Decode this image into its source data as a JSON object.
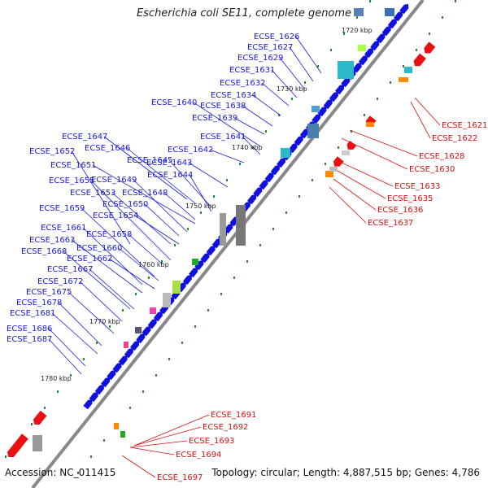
{
  "title": "Escherichia coli SE11, complete genome",
  "footer": {
    "accession": "Accession: NC_011415",
    "summary": "Topology: circular; Length: 4,887,515 bp; Genes: 4,786"
  },
  "colors": {
    "forward_label": "#1a1adb",
    "reverse_label": "#d61010",
    "forward_gene": "#1010e0",
    "reverse_gene": "#e81010",
    "backbone": "#888888",
    "tick": "#2a8a2a"
  },
  "ticks": [
    {
      "label": "1720 kbp",
      "pos": 1720
    },
    {
      "label": "1730 kbp",
      "pos": 1730
    },
    {
      "label": "1740 kbp",
      "pos": 1740
    },
    {
      "label": "1750 kbp",
      "pos": 1750
    },
    {
      "label": "1760 kbp",
      "pos": 1760
    },
    {
      "label": "1770 kbp",
      "pos": 1770
    },
    {
      "label": "1780 kbp",
      "pos": 1780
    }
  ],
  "forward_genes": [
    "ECSE_1626",
    "ECSE_1627",
    "ECSE_1629",
    "ECSE_1631",
    "ECSE_1632",
    "ECSE_1634",
    "ECSE_1640",
    "ECSE_1638",
    "ECSE_1639",
    "ECSE_1641",
    "ECSE_1647",
    "ECSE_1642",
    "ECSE_1646",
    "ECSE_1652",
    "ECSE_1645",
    "ECSE_1643",
    "ECSE_1651",
    "ECSE_1644",
    "ECSE_1655",
    "ECSE_1649",
    "ECSE_1653",
    "ECSE_1648",
    "ECSE_1650",
    "ECSE_1659",
    "ECSE_1654",
    "ECSE_1661",
    "ECSE_1658",
    "ECSE_1663",
    "ECSE_1660",
    "ECSE_1668",
    "ECSE_1662",
    "ECSE_1667",
    "ECSE_1672",
    "ECSE_1675",
    "ECSE_1678",
    "ECSE_1681",
    "ECSE_1686",
    "ECSE_1687"
  ],
  "reverse_genes": [
    "ECSE_1621",
    "ECSE_1622",
    "ECSE_1628",
    "ECSE_1630",
    "ECSE_1633",
    "ECSE_1635",
    "ECSE_1636",
    "ECSE_1637",
    "ECSE_1691",
    "ECSE_1692",
    "ECSE_1693",
    "ECSE_1694",
    "ECSE_1697"
  ]
}
